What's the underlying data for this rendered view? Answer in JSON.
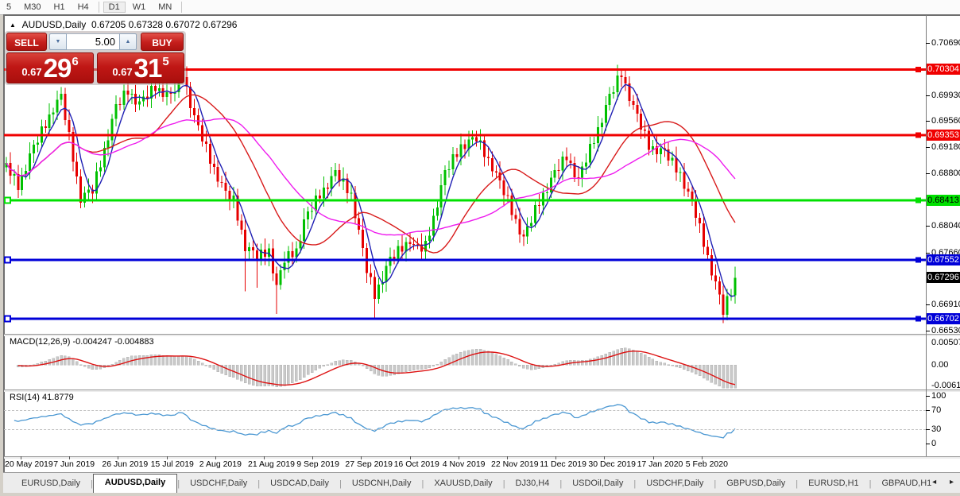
{
  "toolbar": {
    "timeframes": [
      "5",
      "M30",
      "H1",
      "H4",
      "D1",
      "W1",
      "MN"
    ],
    "active": "D1"
  },
  "chart": {
    "title": {
      "symbol": "AUDUSD,Daily",
      "ohlc": "0.67205 0.67328 0.67072 0.67296"
    },
    "trade_panel": {
      "sell_label": "SELL",
      "buy_label": "BUY",
      "volume": "5.00",
      "sell_price_frac": "0.67",
      "sell_price_big": "29",
      "sell_price_sup": "6",
      "buy_price_frac": "0.67",
      "buy_price_big": "31",
      "buy_price_sup": "5"
    }
  },
  "macd_pane": {
    "name": "MACD(12,26,9)",
    "values": "-0.004247 -0.004883",
    "axis_labels": [
      "0.005076",
      "0.00",
      "-0.006148"
    ]
  },
  "rsi_pane": {
    "name": "RSI(14)",
    "value": "41.8779",
    "axis_labels": [
      "100",
      "70",
      "30",
      "0"
    ]
  },
  "timescale": {
    "labels": [
      "20 May 2019",
      "7 Jun 2019",
      "26 Jun 2019",
      "15 Jul 2019",
      "2 Aug 2019",
      "21 Aug 2019",
      "9 Sep 2019",
      "27 Sep 2019",
      "16 Oct 2019",
      "4 Nov 2019",
      "22 Nov 2019",
      "11 Dec 2019",
      "30 Dec 2019",
      "17 Jan 2020",
      "5 Feb 2020"
    ]
  },
  "tabs": {
    "items": [
      "EURUSD,Daily",
      "AUDUSD,Daily",
      "USDCHF,Daily",
      "USDCAD,Daily",
      "USDCNH,Daily",
      "XAUUSD,Daily",
      "DJ30,H4",
      "USDOil,Daily",
      "USDCHF,Daily",
      "GBPUSD,Daily",
      "EURUSD,H1",
      "GBPAUD,H1"
    ],
    "active_index": 1,
    "scroll_left": "◂",
    "scroll_right": "▸"
  },
  "chart_data": {
    "type": "candlestick",
    "symbol": "AUDUSD",
    "timeframe": "Daily",
    "ohlc_current": {
      "open": 0.67205,
      "high": 0.67328,
      "low": 0.67072,
      "close": 0.67296
    },
    "price_range_visible": [
      0.6651,
      0.7105
    ],
    "y_tick_labels": [
      "0.70690",
      "0.69930",
      "0.69560",
      "0.69180",
      "0.68800",
      "0.68040",
      "0.67660",
      "0.66910",
      "0.66530"
    ],
    "x_tick_dates": [
      "20 May 2019",
      "7 Jun 2019",
      "26 Jun 2019",
      "15 Jul 2019",
      "2 Aug 2019",
      "21 Aug 2019",
      "9 Sep 2019",
      "27 Sep 2019",
      "16 Oct 2019",
      "4 Nov 2019",
      "22 Nov 2019",
      "11 Dec 2019",
      "30 Dec 2019",
      "17 Jan 2020",
      "5 Feb 2020"
    ],
    "closes": [
      0.6895,
      0.68767,
      0.68793,
      0.6856,
      0.68783,
      0.68837,
      0.6909,
      0.69217,
      0.69243,
      0.6948,
      0.69457,
      0.69653,
      0.6968,
      0.69865,
      0.6995,
      0.6957,
      0.694,
      0.6897,
      0.6876,
      0.6838,
      0.68523,
      0.68567,
      0.6851,
      0.6883,
      0.6889,
      0.6917,
      0.6928,
      0.6959,
      0.698,
      0.69793,
      0.69997,
      0.6994,
      0.69953,
      0.69797,
      0.6984,
      0.69913,
      0.69885,
      0.70068,
      0.6999,
      0.7003,
      0.69905,
      0.69977,
      0.6995,
      0.69977,
      0.70213,
      0.7019,
      0.70053,
      0.69747,
      0.6964,
      0.695,
      0.6926,
      0.6923,
      0.6894,
      0.68895,
      0.6868,
      0.68665,
      0.6855,
      0.6841,
      0.6848,
      0.68123,
      0.67987,
      0.6768,
      0.67733,
      0.67687,
      0.6754,
      0.677,
      0.676,
      0.6772,
      0.67355,
      0.6719,
      0.674,
      0.6751,
      0.6768,
      0.6759,
      0.6772,
      0.6783,
      0.6814,
      0.6825,
      0.6826,
      0.6848,
      0.6844,
      0.68595,
      0.6858,
      0.68765,
      0.6885,
      0.68685,
      0.6873,
      0.68515,
      0.6852,
      0.68155,
      0.6799,
      0.67725,
      0.6736,
      0.67305,
      0.6699,
      0.67195,
      0.6723,
      0.67465,
      0.676,
      0.6757,
      0.6775,
      0.6767,
      0.6781,
      0.6778,
      0.67778,
      0.67775,
      0.67673,
      0.6783,
      0.679,
      0.6819,
      0.6831,
      0.6863,
      0.6885,
      0.6886,
      0.6908,
      0.6904,
      0.6922,
      0.69155,
      0.6929,
      0.69325,
      0.6926,
      0.6928,
      0.6904,
      0.6902,
      0.6883,
      0.68815,
      0.687,
      0.68485,
      0.6848,
      0.68203,
      0.68145,
      0.67918,
      0.6789,
      0.68038,
      0.68085,
      0.68343,
      0.6834,
      0.6852,
      0.6853,
      0.6874,
      0.6885,
      0.68843,
      0.69047,
      0.6899,
      0.68953,
      0.68747,
      0.6874,
      0.689,
      0.6896,
      0.6923,
      0.6924,
      0.6947,
      0.6953,
      0.6979,
      0.6995,
      0.69977,
      0.70213,
      0.7019,
      0.70103,
      0.69847,
      0.6979,
      0.69663,
      0.69435,
      0.69418,
      0.6914,
      0.69195,
      0.6908,
      0.69165,
      0.6915,
      0.68985,
      0.6903,
      0.68815,
      0.6882,
      0.6858,
      0.6854,
      0.684,
      0.6816,
      0.6808,
      0.6774,
      0.6762,
      0.6733,
      0.6724,
      0.6705,
      0.6676,
      0.6703,
      0.6704,
      0.67296
    ],
    "wick_overrides": {
      "45": {
        "h": 0.7031
      },
      "61": {
        "l": 0.671
      },
      "64": {
        "l": 0.6715
      },
      "69": {
        "l": 0.6677
      },
      "94": {
        "l": 0.667
      },
      "157": {
        "h": 0.70315
      },
      "183": {
        "l": 0.6664
      }
    },
    "bull_color": "#00c000",
    "bear_color": "#e60000",
    "moving_averages": [
      {
        "period": 5,
        "color": "#2020b4"
      },
      {
        "period": 21,
        "color": "#d81a1a"
      },
      {
        "period": 34,
        "color": "#ee1cee"
      }
    ],
    "levels": [
      {
        "label": "0.70304",
        "color": "#f00000",
        "text": "#ffffff",
        "handles": "right"
      },
      {
        "label": "0.69353",
        "color": "#f00000",
        "text": "#ffffff",
        "handles": "right"
      },
      {
        "label": "0.68413",
        "color": "#00e000",
        "text": "#000000",
        "handles": "both"
      },
      {
        "label": "0.67552",
        "color": "#0000d8",
        "text": "#ffffff",
        "handles": "both"
      },
      {
        "label": "0.66702",
        "color": "#0000d8",
        "text": "#ffffff",
        "handles": "both"
      }
    ],
    "current_price": {
      "label": "0.67296",
      "color": "#000000",
      "text": "#ffffff"
    },
    "indicators": {
      "macd": {
        "fast": 12,
        "slow": 26,
        "signal": 9,
        "hist_color": "#c9c9c9",
        "line_color": "#dd1212",
        "axis": [
          0.005076,
          0,
          -0.006148
        ]
      },
      "rsi": {
        "period": 14,
        "line_color": "#4a97d2",
        "levels": [
          70,
          30
        ],
        "axis": [
          100,
          70,
          30,
          0
        ]
      }
    }
  }
}
